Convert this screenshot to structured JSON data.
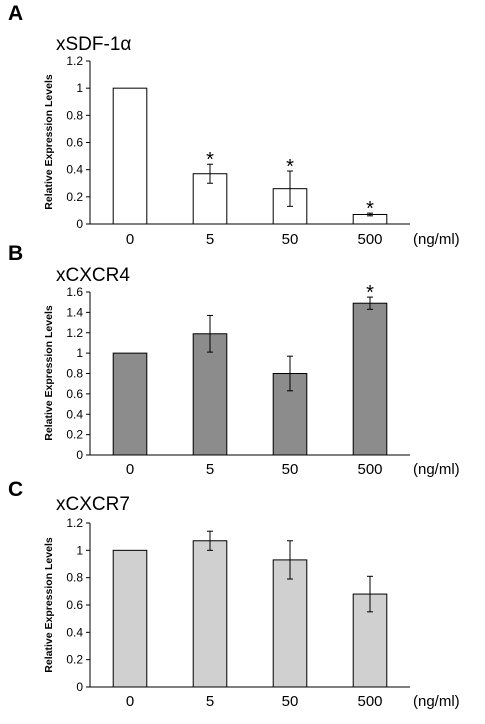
{
  "chart_data": [
    {
      "type": "bar",
      "panel": "A",
      "title": "xSDF-1α",
      "ylabel": "Relative Expression Levels",
      "x_unit": "(ng/ml)",
      "categories": [
        "0",
        "5",
        "50",
        "500"
      ],
      "values": [
        1.0,
        0.37,
        0.26,
        0.07
      ],
      "errors": [
        0.0,
        0.07,
        0.13,
        0.01
      ],
      "significant": [
        "",
        "*",
        "*",
        "*"
      ],
      "ylim": [
        0,
        1.2
      ],
      "yticks": [
        "0",
        "0.2",
        "0.4",
        "0.6",
        "0.8",
        "1",
        "1.2"
      ],
      "bar_color": "#ffffff"
    },
    {
      "type": "bar",
      "panel": "B",
      "title": "xCXCR4",
      "ylabel": "Relative Expression Levels",
      "x_unit": "(ng/ml)",
      "categories": [
        "0",
        "5",
        "50",
        "500"
      ],
      "values": [
        1.0,
        1.19,
        0.8,
        1.49
      ],
      "errors": [
        0.0,
        0.18,
        0.17,
        0.06
      ],
      "significant": [
        "",
        "",
        "",
        "*"
      ],
      "ylim": [
        0,
        1.6
      ],
      "yticks": [
        "0",
        "0.2",
        "0.4",
        "0.6",
        "0.8",
        "1",
        "1.2",
        "1.4",
        "1.6"
      ],
      "bar_color": "#8c8c8c"
    },
    {
      "type": "bar",
      "panel": "C",
      "title": "xCXCR7",
      "ylabel": "Relative Expression Levels",
      "x_unit": "(ng/ml)",
      "categories": [
        "0",
        "5",
        "50",
        "500"
      ],
      "values": [
        1.0,
        1.07,
        0.93,
        0.68
      ],
      "errors": [
        0.0,
        0.07,
        0.14,
        0.13
      ],
      "significant": [
        "",
        "",
        "",
        ""
      ],
      "ylim": [
        0,
        1.2
      ],
      "yticks": [
        "0",
        "0.2",
        "0.4",
        "0.6",
        "0.8",
        "1",
        "1.2"
      ],
      "bar_color": "#d0d0d0"
    }
  ]
}
